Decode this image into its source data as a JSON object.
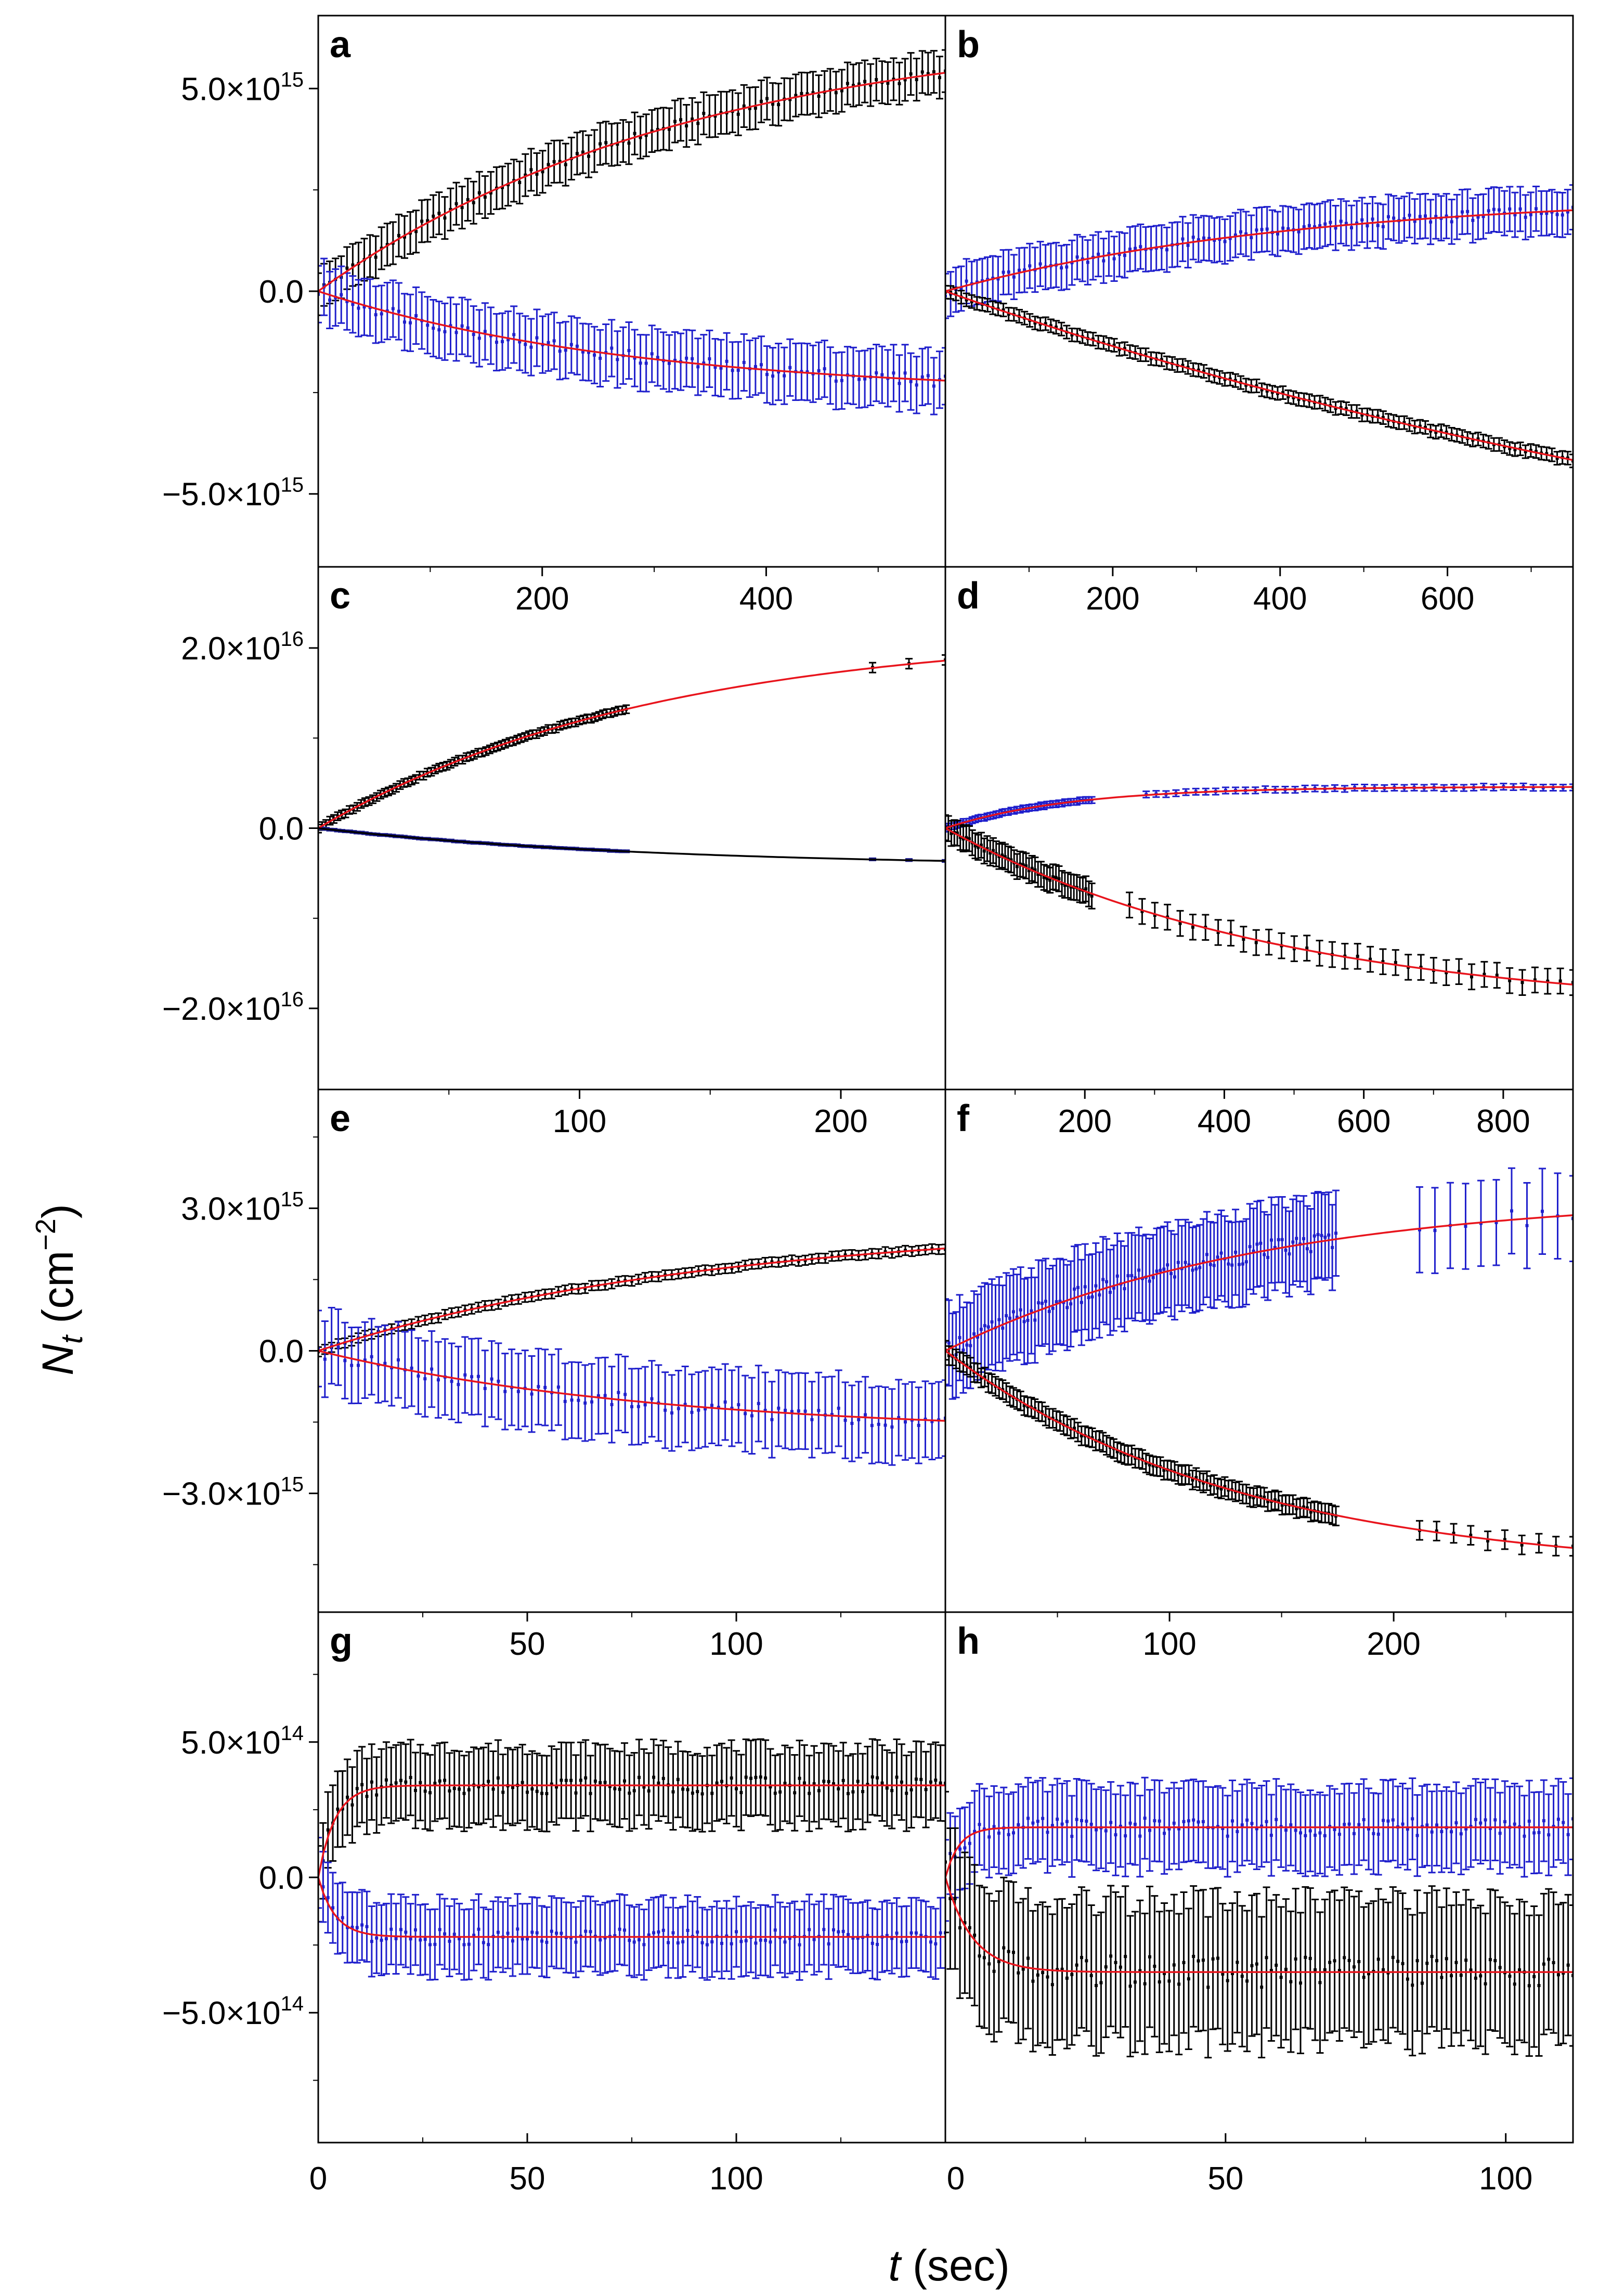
{
  "figure": {
    "ylabel": {
      "main": "N",
      "sub": "t",
      "unit_open": " (cm",
      "sup": "−2",
      "unit_close": ")"
    },
    "xlabel": {
      "var": "t",
      "unit": " (sec)"
    }
  },
  "rows": [
    {
      "yticks": [
        {
          "v": 5000000000000000.0,
          "label": "5.0×10",
          "exp": "15"
        },
        {
          "v": 0,
          "label": "0.0",
          "exp": ""
        },
        {
          "v": -5000000000000000.0,
          "label": "−5.0×10",
          "exp": "15"
        }
      ]
    },
    {
      "yticks": [
        {
          "v": 2e+16,
          "label": "2.0×10",
          "exp": "16"
        },
        {
          "v": 0,
          "label": "0.0",
          "exp": ""
        },
        {
          "v": -2e+16,
          "label": "−2.0×10",
          "exp": "16"
        }
      ]
    },
    {
      "yticks": [
        {
          "v": 3000000000000000.0,
          "label": "3.0×10",
          "exp": "15"
        },
        {
          "v": 0,
          "label": "0.0",
          "exp": ""
        },
        {
          "v": -3000000000000000.0,
          "label": "−3.0×10",
          "exp": "15"
        }
      ]
    },
    {
      "yticks": [
        {
          "v": 500000000000000.0,
          "label": "5.0×10",
          "exp": "14"
        },
        {
          "v": 0,
          "label": "0.0",
          "exp": ""
        },
        {
          "v": -500000000000000.0,
          "label": "−5.0×10",
          "exp": "14"
        }
      ]
    }
  ],
  "colors": {
    "black_series": "#000000",
    "blue_series": "#1f1fcc",
    "fit": "#e8141c",
    "navy_series": "#1a1a8c"
  },
  "chart_data": [
    {
      "panel": "a",
      "type": "scatter",
      "row": 0,
      "col": 0,
      "xlim": [
        0,
        560
      ],
      "ylim": [
        -6800000000000000.0,
        6800000000000000.0
      ],
      "xticks": [],
      "xtick_labels": [],
      "series": [
        {
          "kind": "scatter",
          "color": "black_series",
          "amp": 6600000000000000.0,
          "tau": 330,
          "err": 520000000000000.0,
          "t0": 0,
          "t1": 560,
          "n": 110
        },
        {
          "kind": "scatter",
          "color": "blue_series",
          "amp": -2550000000000000.0,
          "tau": 280,
          "err": 700000000000000.0,
          "t0": 0,
          "t1": 560,
          "n": 110
        },
        {
          "kind": "fit",
          "color": "fit",
          "amp": 6600000000000000.0,
          "tau": 330,
          "t0": 0,
          "t1": 560
        },
        {
          "kind": "fit",
          "color": "fit",
          "amp": -2550000000000000.0,
          "tau": 280,
          "t0": 0,
          "t1": 560
        }
      ]
    },
    {
      "panel": "b",
      "type": "scatter",
      "row": 0,
      "col": 1,
      "xlim": [
        0,
        750
      ],
      "ylim": [
        -6800000000000000.0,
        6800000000000000.0
      ],
      "xticks": [],
      "xtick_labels": [],
      "series": [
        {
          "kind": "scatter",
          "color": "blue_series",
          "amp": 2400000000000000.0,
          "tau": 420,
          "err": 550000000000000.0,
          "t0": 0,
          "t1": 750,
          "n": 120
        },
        {
          "kind": "scatter",
          "color": "black_series",
          "amp": -9500000000000000.0,
          "tau": 1300,
          "err": 160000000000000.0,
          "t0": 0,
          "t1": 750,
          "n": 120
        },
        {
          "kind": "fit",
          "color": "fit",
          "amp": 2400000000000000.0,
          "tau": 420,
          "t0": 0,
          "t1": 750
        },
        {
          "kind": "fit",
          "color": "fit",
          "amp": -9500000000000000.0,
          "tau": 1300,
          "t0": 0,
          "t1": 750
        }
      ]
    },
    {
      "panel": "c",
      "type": "scatter",
      "row": 1,
      "col": 0,
      "xlim": [
        0,
        560
      ],
      "ylim": [
        -2.9e+16,
        2.9e+16
      ],
      "xticks": [
        200,
        400
      ],
      "xtick_labels": [
        "200",
        "400"
      ],
      "series": [
        {
          "kind": "scatter",
          "color": "black_series",
          "amp": 2.2e+16,
          "tau": 300,
          "err": 450000000000000.0,
          "t0": 0,
          "t1": 275,
          "n": 80
        },
        {
          "kind": "scatter",
          "color": "black_series",
          "amp": 2.2e+16,
          "tau": 300,
          "err": 550000000000000.0,
          "t0": 495,
          "t1": 560,
          "n": 3
        },
        {
          "kind": "scatter",
          "color": "navy_series",
          "amp": -4300000000000000.0,
          "tau": 300,
          "err": 120000000000000.0,
          "t0": 0,
          "t1": 275,
          "n": 80
        },
        {
          "kind": "scatter",
          "color": "navy_series",
          "amp": -4300000000000000.0,
          "tau": 300,
          "err": 120000000000000.0,
          "t0": 495,
          "t1": 560,
          "n": 3
        },
        {
          "kind": "fit",
          "color": "fit",
          "amp": 2.2e+16,
          "tau": 300,
          "t0": 0,
          "t1": 560
        },
        {
          "kind": "fit",
          "color": "black_series",
          "amp": -4300000000000000.0,
          "tau": 300,
          "t0": 0,
          "t1": 560
        }
      ]
    },
    {
      "panel": "d",
      "type": "scatter",
      "row": 1,
      "col": 1,
      "xlim": [
        0,
        750
      ],
      "ylim": [
        -2.9e+16,
        2.9e+16
      ],
      "xticks": [
        200,
        400,
        600
      ],
      "xtick_labels": [
        "200",
        "400",
        "600"
      ],
      "series": [
        {
          "kind": "scatter",
          "color": "blue_series",
          "amp": 4600000000000000.0,
          "tau": 150,
          "err": 350000000000000.0,
          "t0": 0,
          "t1": 175,
          "n": 50
        },
        {
          "kind": "scatter",
          "color": "blue_series",
          "amp": 4600000000000000.0,
          "tau": 150,
          "err": 350000000000000.0,
          "t0": 240,
          "t1": 750,
          "n": 44
        },
        {
          "kind": "scatter",
          "color": "black_series",
          "amp": -2.05e+16,
          "tau": 400,
          "err": 1400000000000000.0,
          "t0": 0,
          "t1": 175,
          "n": 50
        },
        {
          "kind": "scatter",
          "color": "black_series",
          "amp": -2.05e+16,
          "tau": 400,
          "err": 1400000000000000.0,
          "t0": 220,
          "t1": 750,
          "n": 36
        },
        {
          "kind": "fit",
          "color": "fit",
          "amp": 4600000000000000.0,
          "tau": 150,
          "t0": 0,
          "t1": 750
        },
        {
          "kind": "fit",
          "color": "fit",
          "amp": -2.05e+16,
          "tau": 400,
          "t0": 0,
          "t1": 750
        }
      ]
    },
    {
      "panel": "e",
      "type": "scatter",
      "row": 2,
      "col": 0,
      "xlim": [
        0,
        240
      ],
      "ylim": [
        -5500000000000000.0,
        5500000000000000.0
      ],
      "xticks": [
        100,
        200
      ],
      "xtick_labels": [
        "100",
        "200"
      ],
      "series": [
        {
          "kind": "scatter",
          "color": "black_series",
          "amp": 2700000000000000.0,
          "tau": 150,
          "err": 100000000000000.0,
          "t0": 0,
          "t1": 240,
          "n": 95
        },
        {
          "kind": "scatter",
          "color": "blue_series",
          "amp": -1750000000000000.0,
          "tau": 130,
          "err": 800000000000000.0,
          "t0": 0,
          "t1": 240,
          "n": 95
        },
        {
          "kind": "fit",
          "color": "fit",
          "amp": 2700000000000000.0,
          "tau": 150,
          "t0": 0,
          "t1": 240
        },
        {
          "kind": "fit",
          "color": "fit",
          "amp": -1750000000000000.0,
          "tau": 130,
          "t0": 0,
          "t1": 240
        }
      ]
    },
    {
      "panel": "f",
      "type": "scatter",
      "row": 2,
      "col": 1,
      "xlim": [
        0,
        900
      ],
      "ylim": [
        -5500000000000000.0,
        5500000000000000.0
      ],
      "xticks": [
        200,
        400,
        600,
        800
      ],
      "xtick_labels": [
        "200",
        "400",
        "600",
        "800"
      ],
      "series": [
        {
          "kind": "scatter",
          "color": "blue_series",
          "amp": 3300000000000000.0,
          "tau": 450,
          "err": 900000000000000.0,
          "t0": 0,
          "t1": 560,
          "n": 110
        },
        {
          "kind": "scatter",
          "color": "blue_series",
          "amp": 3300000000000000.0,
          "tau": 450,
          "err": 900000000000000.0,
          "t0": 680,
          "t1": 900,
          "n": 11
        },
        {
          "kind": "scatter",
          "color": "black_series",
          "amp": -4700000000000000.0,
          "tau": 420,
          "err": 200000000000000.0,
          "t0": 0,
          "t1": 560,
          "n": 110
        },
        {
          "kind": "scatter",
          "color": "black_series",
          "amp": -4700000000000000.0,
          "tau": 420,
          "err": 200000000000000.0,
          "t0": 680,
          "t1": 900,
          "n": 10
        },
        {
          "kind": "fit",
          "color": "fit",
          "amp": 3300000000000000.0,
          "tau": 450,
          "t0": 0,
          "t1": 900
        },
        {
          "kind": "fit",
          "color": "fit",
          "amp": -4700000000000000.0,
          "tau": 420,
          "t0": 0,
          "t1": 900
        }
      ]
    },
    {
      "panel": "g",
      "type": "scatter",
      "row": 3,
      "col": 0,
      "xlim": [
        0,
        150
      ],
      "ylim": [
        -980000000000000.0,
        980000000000000.0
      ],
      "xticks": [
        50,
        100
      ],
      "xtick_labels": [
        "50",
        "100"
      ],
      "bottom_xticks": [
        0,
        50,
        100
      ],
      "bottom_xtick_labels": [
        "0",
        "50",
        "100"
      ],
      "series": [
        {
          "kind": "scatter",
          "color": "black_series",
          "amp": 340000000000000.0,
          "tau": 4,
          "err": 140000000000000.0,
          "t0": 0,
          "t1": 150,
          "n": 130
        },
        {
          "kind": "scatter",
          "color": "blue_series",
          "amp": -220000000000000.0,
          "tau": 4,
          "err": 130000000000000.0,
          "t0": 0,
          "t1": 150,
          "n": 130
        },
        {
          "kind": "fit",
          "color": "fit",
          "amp": 340000000000000.0,
          "tau": 4,
          "t0": 0,
          "t1": 150
        },
        {
          "kind": "fit",
          "color": "fit",
          "amp": -220000000000000.0,
          "tau": 4,
          "t0": 0,
          "t1": 150
        }
      ]
    },
    {
      "panel": "h",
      "type": "scatter",
      "row": 3,
      "col": 1,
      "xlim": [
        0,
        280
      ],
      "ylim": [
        -980000000000000.0,
        980000000000000.0
      ],
      "xticks": [
        100,
        200
      ],
      "xtick_labels": [
        "100",
        "200"
      ],
      "bottom_xticks": [
        0,
        50,
        100
      ],
      "bottom_xtick_labels": [
        "0",
        "50",
        "100"
      ],
      "bottom_xlim": [
        0,
        112
      ],
      "series": [
        {
          "kind": "scatter",
          "color": "blue_series",
          "amp": 185000000000000.0,
          "tau": 6,
          "err": 150000000000000.0,
          "t0": 0,
          "t1": 280,
          "n": 130
        },
        {
          "kind": "scatter",
          "color": "black_series",
          "amp": -350000000000000.0,
          "tau": 12,
          "err": 260000000000000.0,
          "t0": 0,
          "t1": 280,
          "n": 130
        },
        {
          "kind": "fit",
          "color": "fit",
          "amp": 185000000000000.0,
          "tau": 6,
          "t0": 0,
          "t1": 280
        },
        {
          "kind": "fit",
          "color": "fit",
          "amp": -350000000000000.0,
          "tau": 12,
          "t0": 0,
          "t1": 280
        }
      ]
    }
  ]
}
